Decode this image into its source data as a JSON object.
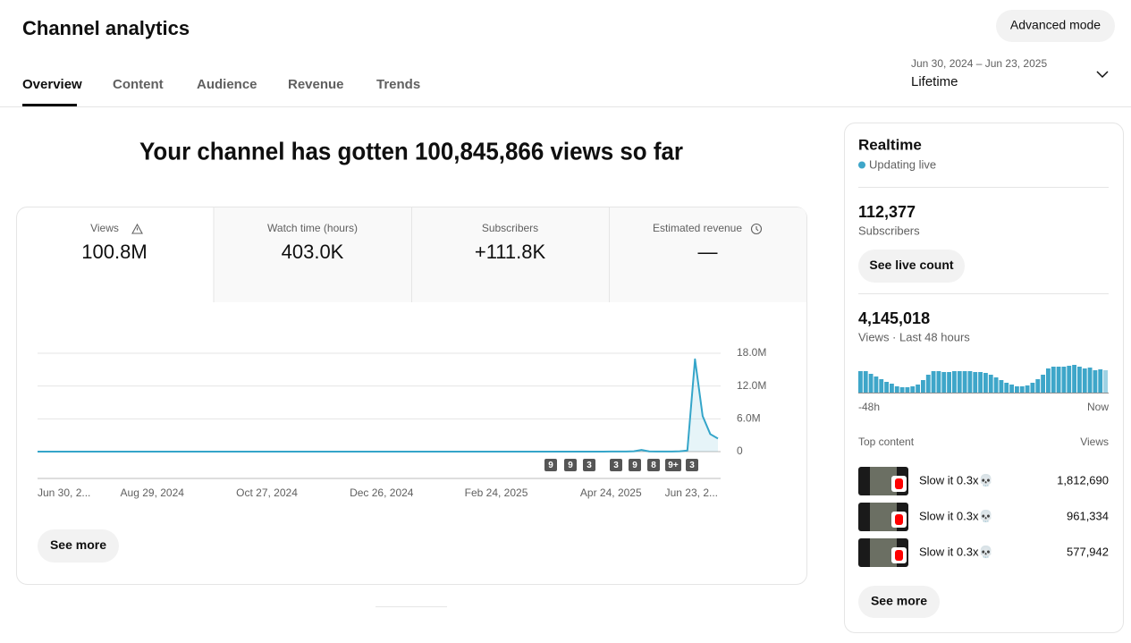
{
  "header": {
    "title": "Channel analytics",
    "advanced_mode": "Advanced mode"
  },
  "tabs": [
    "Overview",
    "Content",
    "Audience",
    "Revenue",
    "Trends"
  ],
  "date_range": {
    "range": "Jun 30, 2024 – Jun 23, 2025",
    "period": "Lifetime"
  },
  "headline": "Your channel has gotten 100,845,866 views so far",
  "metrics": [
    {
      "label": "Views",
      "value": "100.8M"
    },
    {
      "label": "Watch time (hours)",
      "value": "403.0K"
    },
    {
      "label": "Subscribers",
      "value": "+111.8K"
    },
    {
      "label": "Estimated revenue",
      "value": "—"
    }
  ],
  "chart_data": [
    {
      "type": "line",
      "color": "#34a5c9",
      "categories": [
        "Jun 30, 2...",
        null,
        null,
        null,
        null,
        null,
        null,
        null,
        null,
        null,
        null,
        null,
        null,
        null,
        null,
        "Aug 29, 2024",
        null,
        null,
        null,
        null,
        null,
        null,
        null,
        null,
        null,
        null,
        null,
        null,
        null,
        null,
        "Oct 27, 2024",
        null,
        null,
        null,
        null,
        null,
        null,
        null,
        null,
        null,
        null,
        null,
        null,
        null,
        null,
        "Dec 26, 2024",
        null,
        null,
        null,
        null,
        null,
        null,
        null,
        null,
        null,
        null,
        null,
        null,
        null,
        null,
        "Feb 24, 2025",
        null,
        null,
        null,
        null,
        null,
        null,
        null,
        null,
        null,
        null,
        null,
        null,
        null,
        null,
        "Apr 24, 2025",
        null,
        null,
        null,
        null,
        null,
        null,
        null,
        null,
        null,
        null,
        null,
        null,
        null,
        "Jun 23, 2..."
      ],
      "values": [
        2000,
        2000,
        2000,
        2000,
        2000,
        2000,
        2000,
        2000,
        2000,
        2000,
        3000,
        3000,
        3000,
        3000,
        3000,
        3000,
        3000,
        3000,
        3000,
        3000,
        3000,
        3000,
        3000,
        3000,
        3000,
        3000,
        3000,
        3000,
        3000,
        3000,
        4000,
        4000,
        4000,
        4000,
        4000,
        4000,
        4000,
        4000,
        4000,
        4000,
        4000,
        4000,
        4000,
        4000,
        4000,
        4000,
        4000,
        4000,
        4000,
        4000,
        5000,
        5000,
        5000,
        5000,
        5000,
        5000,
        5000,
        5000,
        5000,
        5000,
        6000,
        6000,
        6000,
        6000,
        6000,
        6000,
        6000,
        6000,
        6000,
        6000,
        8000,
        8000,
        9000,
        9000,
        10000,
        12000,
        15000,
        20000,
        60000,
        300000,
        40000,
        20000,
        20000,
        30000,
        60000,
        200000,
        16900000,
        6500000,
        3200000,
        2400000
      ],
      "ylim": [
        0,
        18000000
      ],
      "yticks": [
        0,
        {
          "value": 6000000,
          "label": "6.0M"
        },
        {
          "value": 12000000,
          "label": "12.0M"
        },
        {
          "value": 18000000,
          "label": "18.0M"
        }
      ],
      "grid": true,
      "annotations": [
        "9",
        "9",
        "3",
        "3",
        "9",
        "8",
        "9+",
        "3"
      ]
    },
    {
      "type": "bar",
      "color": "#3ea6c9",
      "categories": [
        "-48h",
        null,
        null,
        null,
        null,
        null,
        null,
        null,
        null,
        null,
        null,
        null,
        null,
        null,
        null,
        null,
        null,
        null,
        null,
        null,
        null,
        null,
        null,
        null,
        null,
        null,
        null,
        null,
        null,
        null,
        null,
        null,
        null,
        null,
        null,
        null,
        null,
        null,
        null,
        null,
        null,
        null,
        null,
        null,
        null,
        null,
        null,
        "Now"
      ],
      "values": [
        108000,
        108000,
        94500,
        81000,
        67500,
        54000,
        45000,
        31500,
        27000,
        27000,
        31500,
        40500,
        63000,
        90000,
        108000,
        108000,
        103500,
        103500,
        108000,
        108000,
        108000,
        108000,
        103500,
        103500,
        99000,
        90000,
        76500,
        63000,
        49500,
        40500,
        31500,
        31500,
        36000,
        49500,
        67500,
        90000,
        121500,
        130500,
        130500,
        130500,
        135000,
        139500,
        130500,
        121500,
        126000,
        112500,
        117000,
        112500
      ]
    }
  ],
  "see_more": "See more",
  "realtime": {
    "title": "Realtime",
    "status": "Updating live",
    "subscribers": {
      "value": "112,377",
      "label": "Subscribers",
      "button": "See live count"
    },
    "views": {
      "value": "4,145,018",
      "label": "Views · Last 48 hours"
    },
    "top_content": {
      "header": "Top content",
      "views_header": "Views",
      "items": [
        {
          "title": "Slow it 0.3x💀",
          "views": "1,812,690"
        },
        {
          "title": "Slow it 0.3x💀",
          "views": "961,334"
        },
        {
          "title": "Slow it 0.3x💀",
          "views": "577,942"
        }
      ]
    },
    "see_more": "See more"
  }
}
